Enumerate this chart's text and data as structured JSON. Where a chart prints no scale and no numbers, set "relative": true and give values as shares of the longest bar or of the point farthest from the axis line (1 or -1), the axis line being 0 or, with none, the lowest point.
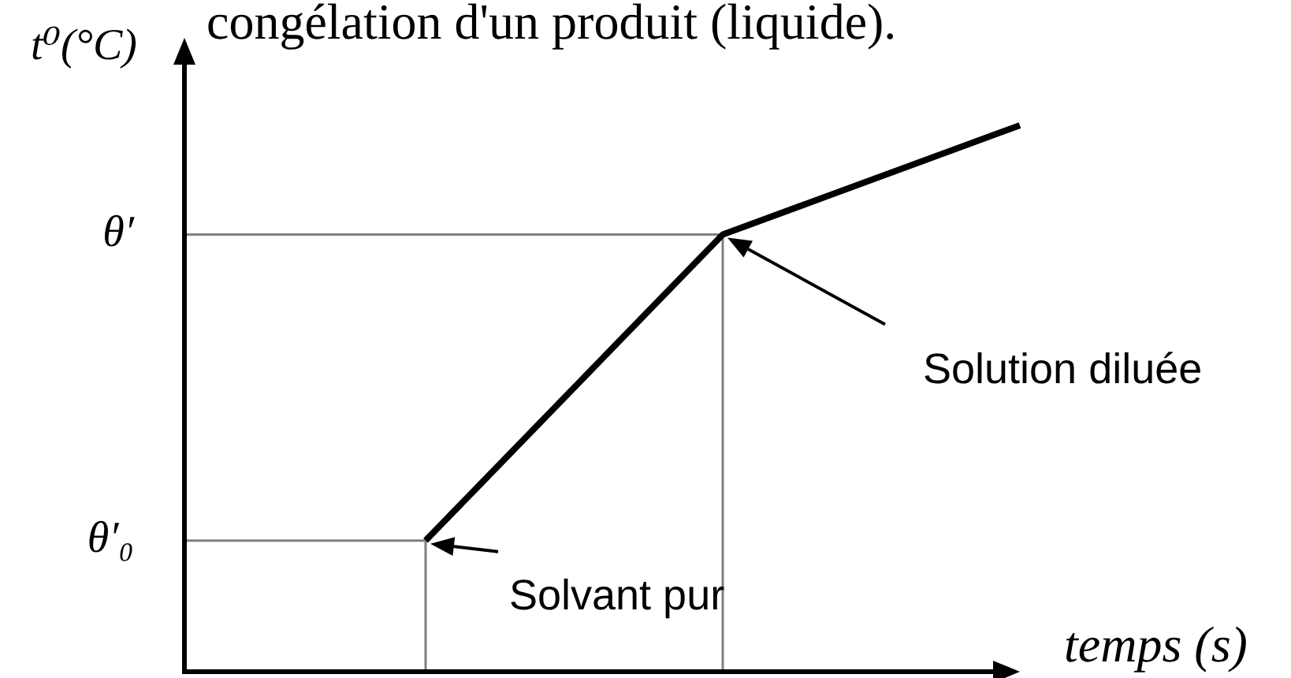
{
  "chart_data": {
    "type": "line",
    "title": "congélation d'un produit (liquide).",
    "xlabel": "temps (s)",
    "ylabel": "t⁰(°C)",
    "relative": true,
    "tick_labels": false,
    "categories": [
      null,
      null,
      null
    ],
    "series": [
      {
        "color": "#000000",
        "values": [
          0.24,
          0.8,
          1
        ]
      }
    ],
    "ref_lines": [
      {
        "axis": "y",
        "value": 0.8,
        "label": "θ′",
        "color": "#7f7f7f"
      },
      {
        "axis": "y",
        "value": 0.24,
        "label": "θ′₀",
        "color": "#7f7f7f"
      }
    ],
    "annotations": [
      "Solution diluée",
      "Solvant pur"
    ]
  }
}
